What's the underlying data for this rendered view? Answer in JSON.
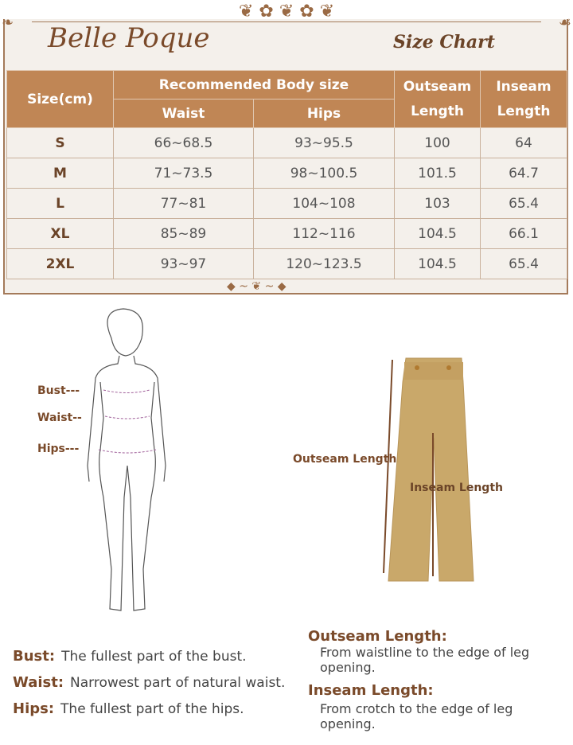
{
  "brand": "Belle Poque",
  "title": "Size Chart",
  "table": {
    "headers": {
      "size": "Size(cm)",
      "group": "Recommended Body size",
      "waist": "Waist",
      "hips": "Hips",
      "outseam": "Outseam Length",
      "inseam": "Inseam Length"
    },
    "rows": [
      {
        "size": "S",
        "waist": "66~68.5",
        "hips": "93~95.5",
        "outseam": "100",
        "inseam": "64"
      },
      {
        "size": "M",
        "waist": "71~73.5",
        "hips": "98~100.5",
        "outseam": "101.5",
        "inseam": "64.7"
      },
      {
        "size": "L",
        "waist": "77~81",
        "hips": "104~108",
        "outseam": "103",
        "inseam": "65.4"
      },
      {
        "size": "XL",
        "waist": "85~89",
        "hips": "112~116",
        "outseam": "104.5",
        "inseam": "66.1"
      },
      {
        "size": "2XL",
        "waist": "93~97",
        "hips": "120~123.5",
        "outseam": "104.5",
        "inseam": "65.4"
      }
    ]
  },
  "figure_labels": {
    "bust": "Bust---",
    "waist": "Waist--",
    "hips": "Hips---"
  },
  "pants_labels": {
    "outseam": "Outseam Length",
    "inseam": "Inseam Length"
  },
  "definitions": [
    {
      "term": "Bust:",
      "text": "The fullest part of the bust."
    },
    {
      "term": "Waist:",
      "text": "Narrowest part of natural waist."
    },
    {
      "term": "Hips:",
      "text": "The fullest part of the hips."
    }
  ],
  "measure_defs": [
    {
      "term": "Outseam Length:",
      "text": "From waistline to the edge of leg opening."
    },
    {
      "term": "Inseam Length:",
      "text": "From crotch to the edge of leg opening."
    }
  ],
  "colors": {
    "header": "#c08655",
    "brand": "#7a4a2a",
    "pants": "#c9a86a"
  }
}
